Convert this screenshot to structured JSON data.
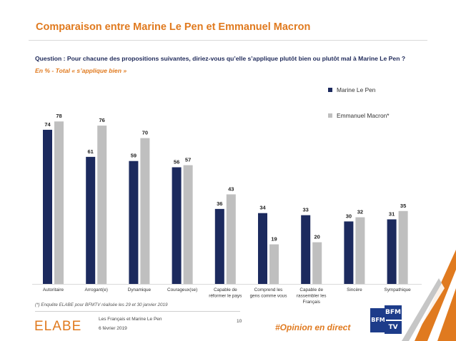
{
  "header": {
    "title": "Comparaison entre Marine Le Pen et Emmanuel Macron",
    "question": "Question : Pour chacune des propositions suivantes, diriez-vous qu’elle s’applique plutôt bien ou plutôt mal à Marine Le Pen ?",
    "subquestion": "En % - Total « s’applique bien »"
  },
  "colors": {
    "accent": "#e07a1f",
    "series_le_pen": "#1c2a5e",
    "series_macron": "#bfbfbf",
    "text_dark": "#1f2a5a"
  },
  "chart_data": {
    "type": "bar",
    "categories": [
      "Autoritaire",
      "Arrogant(e)",
      "Dynamique",
      "Courageux(se)",
      "Capable de réformer le pays",
      "Comprend les gens comme vous",
      "Capable de rassembler les Français",
      "Sincère",
      "Sympathique"
    ],
    "series": [
      {
        "name": "Marine Le Pen",
        "values": [
          74,
          61,
          59,
          56,
          36,
          34,
          33,
          30,
          31
        ]
      },
      {
        "name": "Emmanuel Macron*",
        "values": [
          78,
          76,
          70,
          57,
          43,
          19,
          20,
          32,
          35
        ]
      }
    ],
    "ylim": [
      0,
      100
    ],
    "grid": false,
    "legend": "top-right",
    "title": "",
    "xlabel": "",
    "ylabel": ""
  },
  "footer": {
    "note": "(*) Enquête ELABE pour BFMTV réalisée les 29 et 30 janvier 2019",
    "logo": "ELABE",
    "doc_title": "Les Français et Marine Le Pen",
    "date": "6 février 2019",
    "page": "10",
    "hashtag": "#Opinion en direct",
    "bfm_logo": "BFM TV"
  }
}
